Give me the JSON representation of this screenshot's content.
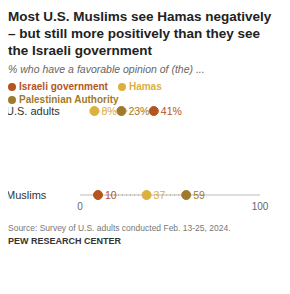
{
  "chart_data": {
    "type": "dot",
    "title": "Most U.S. Muslims see Hamas negatively – but still more positively than they see the Israeli government",
    "subtitle": "% who have a favorable opinion of (the) ...",
    "source": "Source: Survey of U.S. adults conducted Feb. 13-25, 2024.",
    "credit": "PEW RESEARCH CENTER",
    "orientation": "horizontal",
    "categories": [
      "U.S. adults",
      "Muslims"
    ],
    "series": [
      {
        "name": "Israeli government",
        "color": "#b5541e",
        "values": [
          41,
          10
        ],
        "value_labels": [
          "41%",
          "10"
        ]
      },
      {
        "name": "Hamas",
        "color": "#ddb03e",
        "values": [
          8,
          37
        ],
        "value_labels": [
          "8%",
          "37"
        ]
      },
      {
        "name": "Palestinian Authority",
        "color": "#9f7a2c",
        "values": [
          23,
          59
        ],
        "value_labels": [
          "23%",
          "59"
        ]
      }
    ],
    "xlim": [
      0,
      100
    ],
    "xticks": [
      0,
      100
    ],
    "data_labels": true,
    "legend": "top",
    "grid": false
  }
}
